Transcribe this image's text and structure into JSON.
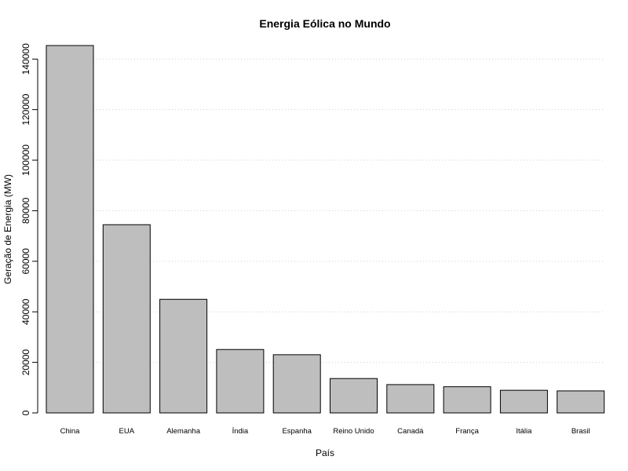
{
  "chart_data": {
    "type": "bar",
    "title": "Energia Eólica no Mundo",
    "xlabel": "País",
    "ylabel": "Geração de Energia (MW)",
    "categories": [
      "China",
      "EUA",
      "Alemanha",
      "Índia",
      "Espanha",
      "Reino Unido",
      "Canadá",
      "França",
      "Itália",
      "Brasil"
    ],
    "values": [
      145362,
      74471,
      44947,
      25088,
      23025,
      13603,
      11205,
      10358,
      8958,
      8715
    ],
    "ylim": [
      0,
      145362
    ],
    "yticks": [
      0,
      20000,
      40000,
      60000,
      80000,
      100000,
      120000,
      140000
    ],
    "grid": "horizontal dotted",
    "bar_color": "#bebebe",
    "bar_border": "#000000"
  }
}
